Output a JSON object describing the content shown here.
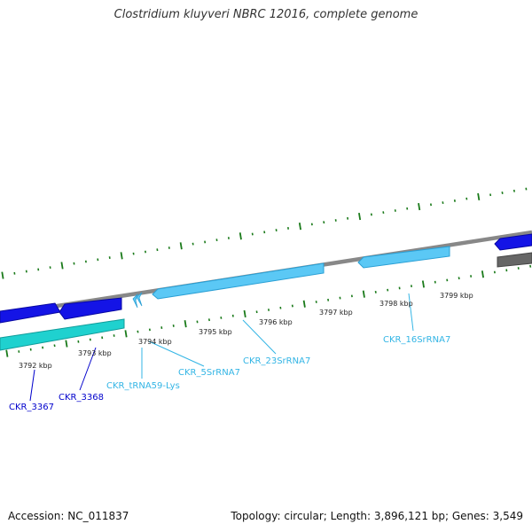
{
  "title": "Clostridium kluyveri NBRC 12016, complete genome",
  "accession_text": "Accession: NC_011837",
  "summary_text": "Topology: circular; Length: 3,896,121 bp; Genes: 3,549",
  "colors": {
    "backbone": "#888888",
    "tick": "#1a7a1a",
    "protein_gene": "#1414e6",
    "protein_gene_dark": "#0808a0",
    "rna_gene": "#5bc8f5",
    "rna_gene_dark": "#2a9fd4",
    "cds_cyan": "#1fd1cf",
    "pseudo_gray": "#666666",
    "protein_label": "#0000cc",
    "rna_label": "#33b5e5"
  },
  "scale_labels": [
    "3792 kbp",
    "3793 kbp",
    "3794 kbp",
    "3795 kbp",
    "3796 kbp",
    "3797 kbp",
    "3798 kbp",
    "3799 kbp"
  ],
  "gene_labels": [
    {
      "text": "CKR_3367",
      "kind": "protein"
    },
    {
      "text": "CKR_3368",
      "kind": "protein"
    },
    {
      "text": "CKR_tRNA59-Lys",
      "kind": "rna"
    },
    {
      "text": "CKR_5SrRNA7",
      "kind": "rna"
    },
    {
      "text": "CKR_23SrRNA7",
      "kind": "rna"
    },
    {
      "text": "CKR_16SrRNA7",
      "kind": "rna"
    }
  ]
}
